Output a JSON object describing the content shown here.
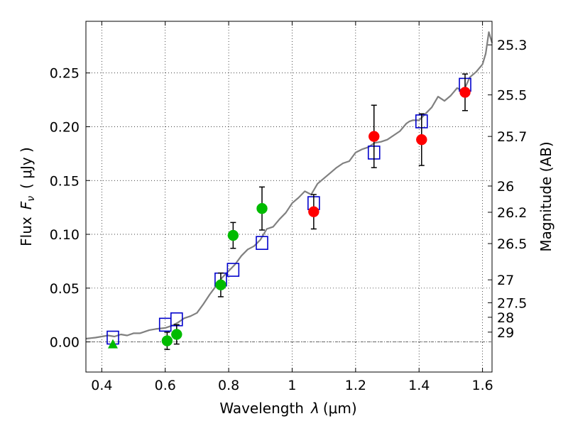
{
  "chart_data": {
    "type": "scatter",
    "xlabel_text": "Wavelength",
    "xlabel_symbol": "λ",
    "xlabel_unit": "(μm)",
    "ylabel_text": "Flux",
    "ylabel_symbol": "F",
    "ylabel_sub": "ν",
    "ylabel_unit": "( μJy )",
    "y2label": "Magnitude (AB)",
    "xlim": [
      0.35,
      1.63
    ],
    "ylim": [
      -0.028,
      0.298
    ],
    "x_ticks": [
      0.4,
      0.6,
      0.8,
      1.0,
      1.2,
      1.4,
      1.6
    ],
    "x_tick_labels": [
      "0.4",
      "0.6",
      "0.8",
      "1",
      "1.2",
      "1.4",
      "1.6"
    ],
    "y_ticks": [
      0.0,
      0.05,
      0.1,
      0.15,
      0.2,
      0.25
    ],
    "y_tick_labels": [
      "0.00",
      "0.05",
      "0.10",
      "0.15",
      "0.20",
      "0.25"
    ],
    "mag_ticks": [
      {
        "label": "25.3",
        "flux": 0.2761
      },
      {
        "label": "25.5",
        "flux": 0.2296
      },
      {
        "label": "25.7",
        "flux": 0.191
      },
      {
        "label": "26",
        "flux": 0.1449
      },
      {
        "label": "26.2",
        "flux": 0.1205
      },
      {
        "label": "26.5",
        "flux": 0.0914
      },
      {
        "label": "27",
        "flux": 0.0577
      },
      {
        "label": "27.5",
        "flux": 0.0364
      },
      {
        "label": "28",
        "flux": 0.0229
      },
      {
        "label": "29",
        "flux": 0.0091
      }
    ],
    "grid": true,
    "series": [
      {
        "marker": "line",
        "color": "#808080",
        "x": [
          0.35,
          0.38,
          0.4,
          0.42,
          0.44,
          0.46,
          0.48,
          0.5,
          0.52,
          0.55,
          0.57,
          0.6,
          0.62,
          0.64,
          0.66,
          0.68,
          0.7,
          0.72,
          0.74,
          0.75,
          0.76,
          0.77,
          0.78,
          0.8,
          0.82,
          0.84,
          0.86,
          0.88,
          0.9,
          0.92,
          0.94,
          0.96,
          0.98,
          1.0,
          1.02,
          1.04,
          1.06,
          1.08,
          1.1,
          1.12,
          1.14,
          1.16,
          1.18,
          1.2,
          1.22,
          1.24,
          1.26,
          1.28,
          1.3,
          1.32,
          1.34,
          1.36,
          1.37,
          1.38,
          1.4,
          1.42,
          1.44,
          1.46,
          1.48,
          1.5,
          1.52,
          1.54,
          1.56,
          1.58,
          1.6,
          1.61,
          1.62,
          1.63
        ],
        "y": [
          0.003,
          0.004,
          0.005,
          0.006,
          0.005,
          0.007,
          0.006,
          0.008,
          0.008,
          0.011,
          0.012,
          0.013,
          0.015,
          0.018,
          0.022,
          0.024,
          0.027,
          0.035,
          0.044,
          0.048,
          0.052,
          0.056,
          0.06,
          0.066,
          0.072,
          0.08,
          0.086,
          0.089,
          0.095,
          0.105,
          0.107,
          0.114,
          0.12,
          0.129,
          0.134,
          0.14,
          0.137,
          0.147,
          0.152,
          0.157,
          0.162,
          0.166,
          0.168,
          0.176,
          0.179,
          0.181,
          0.185,
          0.186,
          0.188,
          0.192,
          0.196,
          0.203,
          0.205,
          0.206,
          0.206,
          0.212,
          0.218,
          0.228,
          0.224,
          0.229,
          0.236,
          0.233,
          0.246,
          0.251,
          0.258,
          0.268,
          0.288,
          0.278
        ]
      },
      {
        "marker": "open-square",
        "color": "#0000cc",
        "x": [
          0.435,
          0.6,
          0.636,
          0.775,
          0.814,
          0.905,
          1.068,
          1.258,
          1.408,
          1.545
        ],
        "y": [
          0.004,
          0.016,
          0.021,
          0.058,
          0.067,
          0.092,
          0.129,
          0.176,
          0.205,
          0.239
        ]
      },
      {
        "marker": "triangle",
        "color": "#00bb00",
        "x": [
          0.435
        ],
        "y": [
          -0.002
        ]
      },
      {
        "marker": "circle",
        "color": "#00bb00",
        "x": [
          0.606,
          0.636,
          0.775,
          0.814,
          0.905
        ],
        "y": [
          0.001,
          0.007,
          0.053,
          0.099,
          0.124
        ],
        "yerr": [
          0.008,
          0.009,
          0.011,
          0.012,
          0.02
        ]
      },
      {
        "marker": "circle",
        "color": "#ff0000",
        "x": [
          1.068,
          1.258,
          1.408,
          1.545
        ],
        "y": [
          0.121,
          0.191,
          0.188,
          0.232
        ],
        "yerr": [
          0.016,
          0.029,
          0.024,
          0.017
        ]
      }
    ]
  }
}
